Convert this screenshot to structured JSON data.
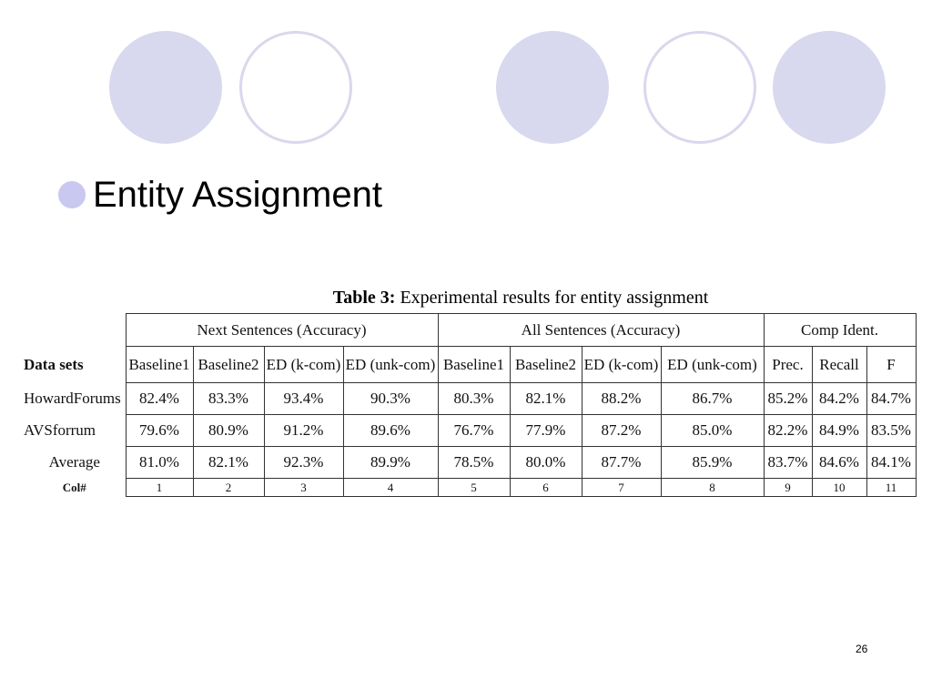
{
  "slide": {
    "bullet": "Entity Assignment",
    "page_number": "26",
    "colors": {
      "circle_fill": "#d8d8ee",
      "bullet_fill": "#c8c8f0"
    }
  },
  "table": {
    "caption_bold": "Table 3:",
    "caption_rest": " Experimental results for entity assignment",
    "groups": [
      "Next Sentences (Accuracy)",
      "All Sentences (Accuracy)",
      "Comp Ident."
    ],
    "datasets_label": "Data sets",
    "headers": [
      "Baseline1",
      "Baseline2",
      "ED (k-com)",
      "ED (unk-com)",
      "Baseline1",
      "Baseline2",
      "ED (k-com)",
      "ED (unk-com)",
      "Prec.",
      "Recall",
      "F"
    ],
    "rows": [
      {
        "label": "HowardForums",
        "values": [
          "82.4%",
          "83.3%",
          "93.4%",
          "90.3%",
          "80.3%",
          "82.1%",
          "88.2%",
          "86.7%",
          "85.2%",
          "84.2%",
          "84.7%"
        ]
      },
      {
        "label": "AVSforrum",
        "values": [
          "79.6%",
          "80.9%",
          "91.2%",
          "89.6%",
          "76.7%",
          "77.9%",
          "87.2%",
          "85.0%",
          "82.2%",
          "84.9%",
          "83.5%"
        ]
      },
      {
        "label": "Average",
        "values": [
          "81.0%",
          "82.1%",
          "92.3%",
          "89.9%",
          "78.5%",
          "80.0%",
          "87.7%",
          "85.9%",
          "83.7%",
          "84.6%",
          "84.1%"
        ]
      }
    ],
    "colnum_label": "Col#",
    "colnums": [
      "1",
      "2",
      "3",
      "4",
      "5",
      "6",
      "7",
      "8",
      "9",
      "10",
      "11"
    ]
  }
}
